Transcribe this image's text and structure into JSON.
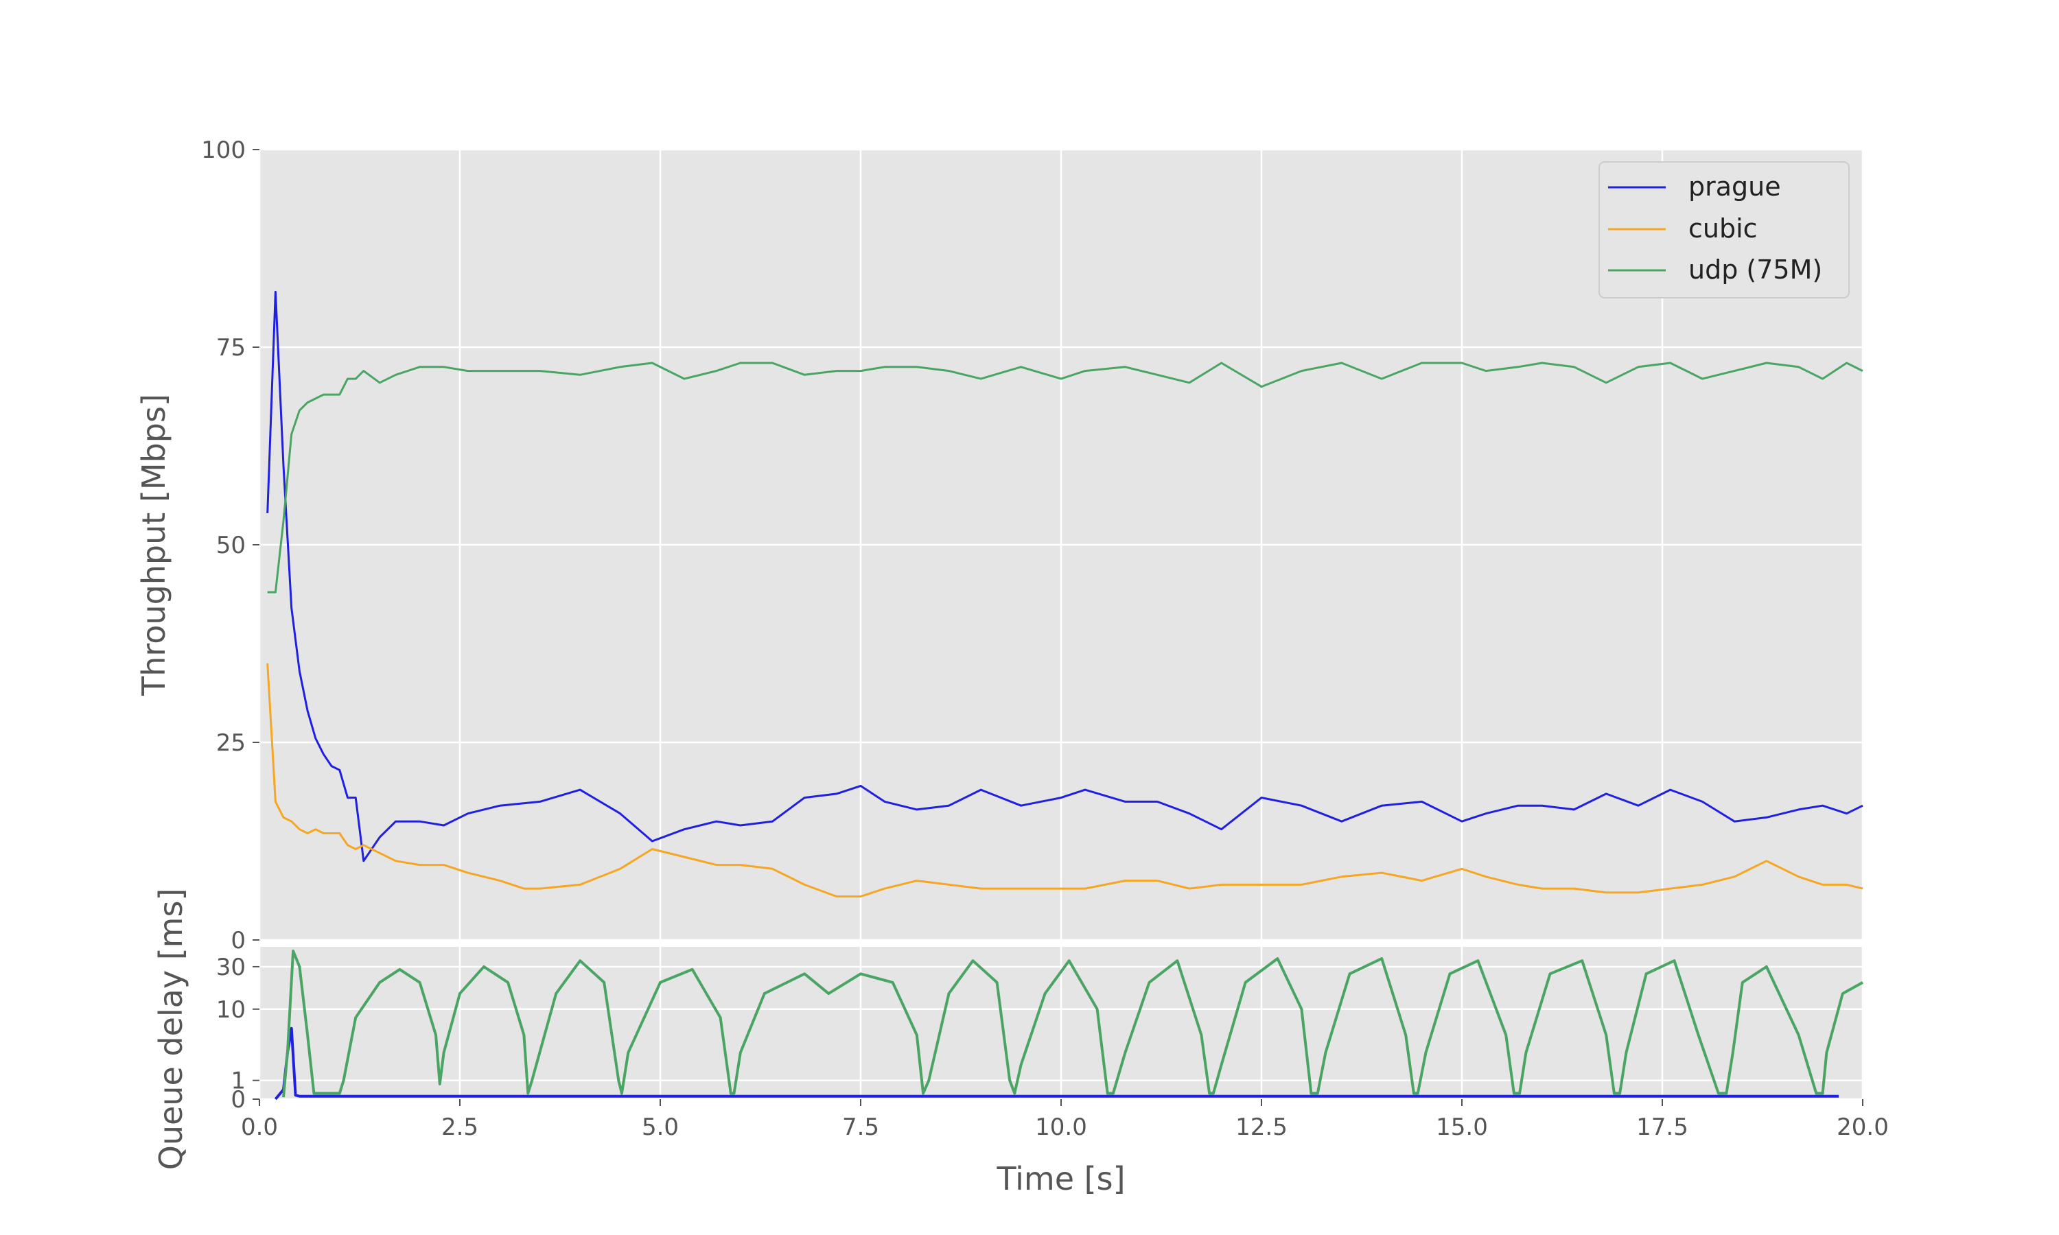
{
  "chart_data": [
    {
      "type": "line",
      "title": "",
      "xlabel": "",
      "ylabel": "Throughput [Mbps]",
      "xlim": [
        0,
        20
      ],
      "ylim": [
        0,
        100
      ],
      "yticks": [
        "0",
        "25",
        "50",
        "75",
        "100"
      ],
      "grid": true,
      "legend_position": "top-right",
      "series": [
        {
          "name": "prague",
          "color": "#2020e0",
          "x": [
            0.1,
            0.2,
            0.3,
            0.4,
            0.5,
            0.6,
            0.7,
            0.8,
            0.9,
            1.0,
            1.1,
            1.2,
            1.3,
            1.5,
            1.7,
            2.0,
            2.3,
            2.6,
            3.0,
            3.5,
            4.0,
            4.5,
            4.9,
            5.3,
            5.7,
            6.0,
            6.4,
            6.8,
            7.2,
            7.5,
            7.8,
            8.2,
            8.6,
            9.0,
            9.5,
            10.0,
            10.3,
            10.8,
            11.2,
            11.6,
            12.0,
            12.5,
            13.0,
            13.5,
            14.0,
            14.5,
            15.0,
            15.3,
            15.7,
            16.0,
            16.4,
            16.8,
            17.2,
            17.6,
            18.0,
            18.4,
            18.8,
            19.2,
            19.5,
            19.8,
            20.0
          ],
          "y": [
            54,
            82,
            60,
            42,
            34,
            29,
            25.5,
            23.5,
            22,
            21.5,
            18,
            18,
            10,
            13,
            15,
            15,
            14.5,
            16,
            17,
            17.5,
            19,
            16,
            12.5,
            14,
            15,
            14.5,
            15,
            18,
            18.5,
            19.5,
            17.5,
            16.5,
            17,
            19,
            17,
            18,
            19,
            17.5,
            17.5,
            16,
            14,
            18,
            17,
            15,
            17,
            17.5,
            15,
            16,
            17,
            17,
            16.5,
            18.5,
            17,
            19,
            17.5,
            15,
            15.5,
            16.5,
            17,
            16,
            17
          ]
        },
        {
          "name": "cubic",
          "color": "#f5a623",
          "x": [
            0.1,
            0.2,
            0.3,
            0.4,
            0.5,
            0.6,
            0.7,
            0.8,
            0.9,
            1.0,
            1.1,
            1.2,
            1.3,
            1.5,
            1.7,
            2.0,
            2.3,
            2.6,
            3.0,
            3.3,
            3.5,
            4.0,
            4.5,
            4.9,
            5.3,
            5.7,
            6.0,
            6.4,
            6.8,
            7.2,
            7.5,
            7.8,
            8.2,
            8.6,
            9.0,
            9.5,
            10.0,
            10.3,
            10.8,
            11.2,
            11.6,
            12.0,
            12.5,
            13.0,
            13.5,
            14.0,
            14.5,
            15.0,
            15.3,
            15.7,
            16.0,
            16.4,
            16.8,
            17.2,
            17.6,
            18.0,
            18.4,
            18.8,
            19.2,
            19.5,
            19.8,
            20.0
          ],
          "y": [
            35,
            17.5,
            15.5,
            15,
            14,
            13.5,
            14,
            13.5,
            13.5,
            13.5,
            12,
            11.5,
            12,
            11,
            10,
            9.5,
            9.5,
            8.5,
            7.5,
            6.5,
            6.5,
            7,
            9,
            11.5,
            10.5,
            9.5,
            9.5,
            9,
            7,
            5.5,
            5.5,
            6.5,
            7.5,
            7,
            6.5,
            6.5,
            6.5,
            6.5,
            7.5,
            7.5,
            6.5,
            7,
            7,
            7,
            8,
            8.5,
            7.5,
            9,
            8,
            7,
            6.5,
            6.5,
            6,
            6,
            6.5,
            7,
            8,
            10,
            8,
            7,
            7,
            6.5
          ]
        },
        {
          "name": "udp (75M)",
          "color": "#4aa564",
          "x": [
            0.1,
            0.2,
            0.3,
            0.4,
            0.5,
            0.6,
            0.7,
            0.8,
            0.9,
            1.0,
            1.1,
            1.2,
            1.3,
            1.5,
            1.7,
            2.0,
            2.3,
            2.6,
            3.0,
            3.5,
            4.0,
            4.5,
            4.9,
            5.3,
            5.7,
            6.0,
            6.4,
            6.8,
            7.2,
            7.5,
            7.8,
            8.2,
            8.6,
            9.0,
            9.5,
            10.0,
            10.3,
            10.8,
            11.2,
            11.6,
            12.0,
            12.5,
            13.0,
            13.5,
            14.0,
            14.5,
            15.0,
            15.3,
            15.7,
            16.0,
            16.4,
            16.8,
            17.2,
            17.6,
            18.0,
            18.4,
            18.8,
            19.2,
            19.5,
            19.8,
            20.0
          ],
          "y": [
            44,
            44,
            53,
            64,
            67,
            68,
            68.5,
            69,
            69,
            69,
            71,
            71,
            72,
            70.5,
            71.5,
            72.5,
            72.5,
            72,
            72,
            72,
            71.5,
            72.5,
            73,
            71,
            72,
            73,
            73,
            71.5,
            72,
            72,
            72.5,
            72.5,
            72,
            71,
            72.5,
            71,
            72,
            72.5,
            71.5,
            70.5,
            73,
            70,
            72,
            73,
            71,
            73,
            73,
            72,
            72.5,
            73,
            72.5,
            70.5,
            72.5,
            73,
            71,
            72,
            73,
            72.5,
            71,
            73,
            72
          ]
        }
      ]
    },
    {
      "type": "line",
      "title": "",
      "xlabel": "Time [s]",
      "ylabel": "Queue delay [ms]",
      "xlim": [
        0,
        20
      ],
      "yscale": "symlog",
      "ylim": [
        0,
        50
      ],
      "yticks": [
        "0",
        "1",
        "10",
        "30"
      ],
      "xticks": [
        "0.0",
        "2.5",
        "5.0",
        "7.5",
        "10.0",
        "12.5",
        "15.0",
        "17.5",
        "20.0"
      ],
      "grid": true,
      "series": [
        {
          "color": "#2020e0",
          "x": [
            0.2,
            0.3,
            0.35,
            0.4,
            0.45,
            0.5,
            1.0,
            2.0,
            3.0,
            4.0,
            5.0,
            6.0,
            7.0,
            8.0,
            9.0,
            10.0,
            11.0,
            12.0,
            13.0,
            14.0,
            15.0,
            16.0,
            17.0,
            18.0,
            19.0,
            19.7
          ],
          "y": [
            0,
            0.5,
            3,
            6,
            0.2,
            0.15,
            0.15,
            0.15,
            0.15,
            0.15,
            0.15,
            0.15,
            0.15,
            0.15,
            0.15,
            0.15,
            0.15,
            0.15,
            0.15,
            0.15,
            0.15,
            0.15,
            0.15,
            0.15,
            0.15,
            0.15
          ]
        },
        {
          "color": "#4aa564",
          "x": [
            0.3,
            0.35,
            0.42,
            0.5,
            0.6,
            0.68,
            0.72,
            1.0,
            1.05,
            1.2,
            1.5,
            1.75,
            2.0,
            2.2,
            2.25,
            2.3,
            2.5,
            2.8,
            3.1,
            3.3,
            3.35,
            3.4,
            3.7,
            4.0,
            4.3,
            4.48,
            4.52,
            4.6,
            5.0,
            5.4,
            5.75,
            5.88,
            5.92,
            6.0,
            6.3,
            6.8,
            7.1,
            7.5,
            7.9,
            8.2,
            8.28,
            8.35,
            8.6,
            8.9,
            9.2,
            9.36,
            9.42,
            9.5,
            9.8,
            10.1,
            10.45,
            10.58,
            10.65,
            10.8,
            11.1,
            11.45,
            11.75,
            11.85,
            11.9,
            12.0,
            12.3,
            12.7,
            13.0,
            13.12,
            13.2,
            13.3,
            13.6,
            14.0,
            14.3,
            14.4,
            14.45,
            14.55,
            14.85,
            15.2,
            15.55,
            15.65,
            15.72,
            15.8,
            16.1,
            16.5,
            16.8,
            16.9,
            16.97,
            17.05,
            17.3,
            17.65,
            17.95,
            18.2,
            18.3,
            18.38,
            18.5,
            18.8,
            19.2,
            19.42,
            19.5,
            19.55,
            19.75,
            20.0
          ],
          "y": [
            0.1,
            3,
            45,
            30,
            5,
            0.3,
            0.3,
            0.3,
            1,
            8,
            20,
            28,
            20,
            5,
            0.8,
            3,
            15,
            30,
            20,
            5,
            0.3,
            1,
            15,
            35,
            20,
            1,
            0.3,
            3,
            20,
            28,
            8,
            0.3,
            0.3,
            3,
            15,
            25,
            15,
            25,
            20,
            5,
            0.3,
            1,
            15,
            35,
            20,
            1,
            0.3,
            2,
            15,
            35,
            10,
            0.3,
            0.3,
            3,
            20,
            35,
            5,
            0.3,
            0.3,
            2,
            20,
            37,
            10,
            0.3,
            0.3,
            3,
            25,
            37,
            5,
            0.3,
            0.3,
            3,
            25,
            35,
            5,
            0.3,
            0.3,
            3,
            25,
            35,
            5,
            0.3,
            0.3,
            3,
            25,
            35,
            5,
            0.3,
            0.3,
            3,
            20,
            30,
            5,
            0.3,
            0.3,
            3,
            15,
            20
          ]
        }
      ]
    }
  ]
}
